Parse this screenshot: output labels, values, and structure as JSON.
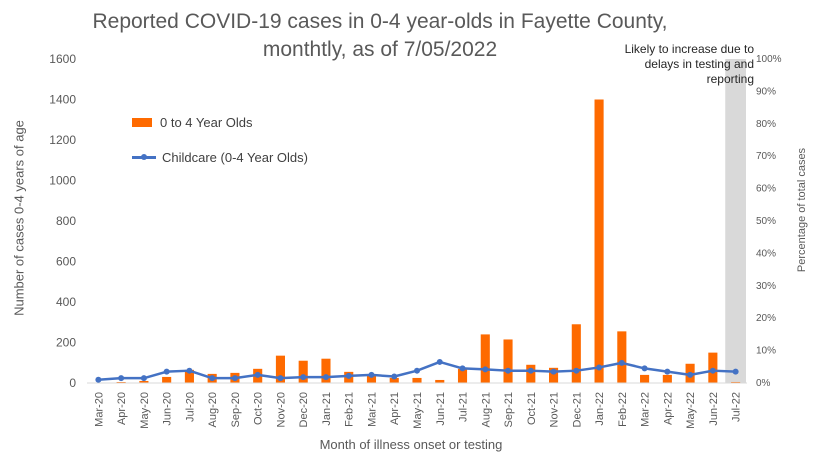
{
  "colors": {
    "bars": "#fe6a00",
    "line": "#4472c4",
    "shade": "#d9d9d9",
    "axis_text": "#595959",
    "gridline": "#d9d9d9"
  },
  "note": "Likely to increase due to delays in testing and reporting",
  "chart_data": {
    "type": "bar",
    "title": "Reported COVID-19 cases in 0-4 year-olds in Fayette County, monthtly, as of 7/05/2022",
    "xlabel": "Month of illness onset or testing",
    "ylabel": "Number of cases 0-4 years of age",
    "y2label": "Percentage of total cases",
    "ylim": [
      0,
      1600
    ],
    "y2lim": [
      0,
      100
    ],
    "yticks": [
      "0",
      "200",
      "400",
      "600",
      "800",
      "1000",
      "1200",
      "1400",
      "1600"
    ],
    "y2ticks": [
      "0%",
      "10%",
      "20%",
      "30%",
      "40%",
      "50%",
      "60%",
      "70%",
      "80%",
      "90%",
      "100%"
    ],
    "grid": false,
    "legend_position": "upper-left",
    "shaded_category": "Jul-22",
    "categories": [
      "Mar-20",
      "Apr-20",
      "May-20",
      "Jun-20",
      "Jul-20",
      "Aug-20",
      "Sep-20",
      "Oct-20",
      "Nov-20",
      "Dec-20",
      "Jan-21",
      "Feb-21",
      "Mar-21",
      "Apr-21",
      "May-21",
      "Jun-21",
      "Jul-21",
      "Aug-21",
      "Sep-21",
      "Oct-21",
      "Nov-21",
      "Dec-21",
      "Jan-22",
      "Feb-22",
      "Mar-22",
      "Apr-22",
      "May-22",
      "Jun-22",
      "Jul-22"
    ],
    "series": [
      {
        "name": "0 to 4 Year Olds",
        "type": "bar",
        "axis": "left",
        "values": [
          2,
          5,
          10,
          30,
          65,
          45,
          50,
          70,
          135,
          110,
          120,
          55,
          35,
          25,
          25,
          15,
          70,
          240,
          215,
          90,
          75,
          290,
          1400,
          255,
          40,
          40,
          95,
          150,
          5
        ]
      },
      {
        "name": "Childcare (0-4 Year Olds)",
        "type": "line",
        "axis": "right",
        "values": [
          1.0,
          1.5,
          1.5,
          3.5,
          3.8,
          1.5,
          1.5,
          2.5,
          1.5,
          1.8,
          1.8,
          2.2,
          2.5,
          2.0,
          3.8,
          6.5,
          4.5,
          4.2,
          3.8,
          3.8,
          3.5,
          3.8,
          4.8,
          6.2,
          4.5,
          3.5,
          2.5,
          3.8,
          3.5
        ]
      }
    ]
  }
}
